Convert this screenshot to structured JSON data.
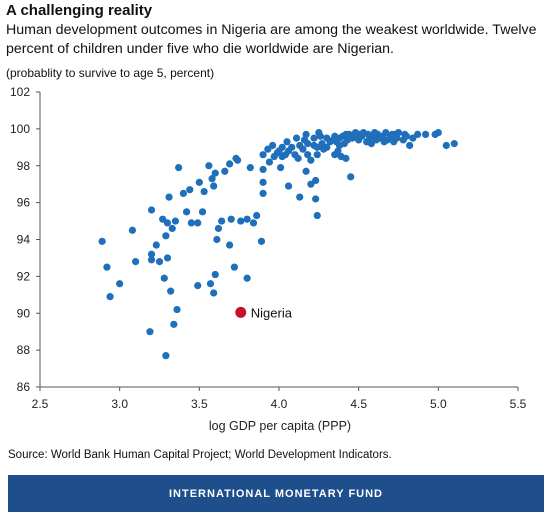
{
  "chart_data": {
    "type": "scatter",
    "title": "A challenging reality",
    "subtitle": "Human development outcomes in Nigeria are among the weakest worldwide. Twelve percent of children under five who die worldwide are Nigerian.",
    "units_note": "(probablity to survive to age 5, percent)",
    "xlabel": "log GDP per capita (PPP)",
    "ylabel": "",
    "xlim": [
      2.5,
      5.5
    ],
    "ylim": [
      86,
      102
    ],
    "xticks": [
      "2.5",
      "3.0",
      "3.5",
      "4.0",
      "4.5",
      "5.0",
      "5.5"
    ],
    "yticks": [
      "86",
      "88",
      "90",
      "92",
      "94",
      "96",
      "98",
      "100",
      "102"
    ],
    "grid": false,
    "colors": {
      "countries": "#1f6fba",
      "nigeria": "#c8102e"
    },
    "highlight": {
      "label": "Nigeria",
      "x": 3.76,
      "y": 90.05
    },
    "points": [
      [
        2.89,
        93.9
      ],
      [
        2.92,
        92.5
      ],
      [
        2.94,
        90.9
      ],
      [
        3.0,
        91.6
      ],
      [
        3.08,
        94.5
      ],
      [
        3.1,
        92.8
      ],
      [
        3.19,
        89.0
      ],
      [
        3.2,
        92.9
      ],
      [
        3.2,
        93.2
      ],
      [
        3.2,
        95.6
      ],
      [
        3.23,
        93.7
      ],
      [
        3.25,
        92.8
      ],
      [
        3.27,
        95.1
      ],
      [
        3.28,
        91.9
      ],
      [
        3.29,
        87.7
      ],
      [
        3.29,
        94.2
      ],
      [
        3.3,
        93.0
      ],
      [
        3.3,
        94.9
      ],
      [
        3.31,
        96.3
      ],
      [
        3.32,
        91.2
      ],
      [
        3.33,
        94.6
      ],
      [
        3.34,
        89.4
      ],
      [
        3.35,
        95.0
      ],
      [
        3.36,
        90.2
      ],
      [
        3.37,
        97.9
      ],
      [
        3.4,
        96.5
      ],
      [
        3.42,
        95.5
      ],
      [
        3.44,
        96.7
      ],
      [
        3.45,
        94.9
      ],
      [
        3.49,
        94.9
      ],
      [
        3.49,
        91.5
      ],
      [
        3.5,
        97.1
      ],
      [
        3.52,
        95.5
      ],
      [
        3.53,
        96.6
      ],
      [
        3.56,
        98.0
      ],
      [
        3.57,
        91.6
      ],
      [
        3.58,
        97.3
      ],
      [
        3.59,
        91.1
      ],
      [
        3.59,
        96.9
      ],
      [
        3.6,
        92.1
      ],
      [
        3.6,
        97.6
      ],
      [
        3.61,
        94.0
      ],
      [
        3.62,
        94.6
      ],
      [
        3.64,
        95.0
      ],
      [
        3.66,
        97.7
      ],
      [
        3.69,
        93.7
      ],
      [
        3.69,
        98.1
      ],
      [
        3.7,
        95.1
      ],
      [
        3.72,
        92.5
      ],
      [
        3.73,
        98.4
      ],
      [
        3.74,
        98.3
      ],
      [
        3.76,
        95.0
      ],
      [
        3.8,
        91.9
      ],
      [
        3.8,
        95.1
      ],
      [
        3.82,
        97.9
      ],
      [
        3.84,
        94.9
      ],
      [
        3.86,
        95.3
      ],
      [
        3.89,
        93.9
      ],
      [
        3.9,
        97.8
      ],
      [
        3.9,
        98.6
      ],
      [
        3.9,
        97.1
      ],
      [
        3.9,
        96.5
      ],
      [
        3.93,
        98.9
      ],
      [
        3.94,
        98.2
      ],
      [
        3.96,
        99.1
      ],
      [
        3.97,
        98.5
      ],
      [
        3.99,
        98.7
      ],
      [
        4.0,
        98.8
      ],
      [
        4.01,
        97.9
      ],
      [
        4.02,
        99.0
      ],
      [
        4.02,
        98.5
      ],
      [
        4.04,
        98.6
      ],
      [
        4.05,
        99.3
      ],
      [
        4.06,
        96.9
      ],
      [
        4.06,
        98.8
      ],
      [
        4.08,
        99.0
      ],
      [
        4.1,
        98.6
      ],
      [
        4.11,
        99.5
      ],
      [
        4.12,
        98.4
      ],
      [
        4.13,
        99.1
      ],
      [
        4.13,
        96.3
      ],
      [
        4.15,
        98.9
      ],
      [
        4.16,
        99.4
      ],
      [
        4.17,
        99.7
      ],
      [
        4.17,
        97.7
      ],
      [
        4.18,
        98.6
      ],
      [
        4.18,
        99.2
      ],
      [
        4.2,
        97.0
      ],
      [
        4.2,
        98.3
      ],
      [
        4.22,
        99.1
      ],
      [
        4.22,
        99.5
      ],
      [
        4.23,
        96.2
      ],
      [
        4.23,
        97.2
      ],
      [
        4.24,
        99.0
      ],
      [
        4.24,
        95.3
      ],
      [
        4.24,
        98.6
      ],
      [
        4.25,
        99.8
      ],
      [
        4.26,
        99.6
      ],
      [
        4.27,
        99.2
      ],
      [
        4.28,
        98.9
      ],
      [
        4.3,
        99.5
      ],
      [
        4.3,
        99.0
      ],
      [
        4.32,
        99.3
      ],
      [
        4.34,
        99.4
      ],
      [
        4.35,
        98.6
      ],
      [
        4.35,
        99.6
      ],
      [
        4.36,
        99.3
      ],
      [
        4.37,
        98.8
      ],
      [
        4.38,
        99.1
      ],
      [
        4.38,
        99.5
      ],
      [
        4.39,
        98.5
      ],
      [
        4.4,
        99.6
      ],
      [
        4.41,
        99.2
      ],
      [
        4.42,
        98.4
      ],
      [
        4.42,
        99.7
      ],
      [
        4.43,
        99.4
      ],
      [
        4.44,
        99.7
      ],
      [
        4.45,
        97.4
      ],
      [
        4.46,
        99.5
      ],
      [
        4.47,
        99.6
      ],
      [
        4.48,
        99.8
      ],
      [
        4.5,
        99.4
      ],
      [
        4.5,
        99.7
      ],
      [
        4.52,
        99.6
      ],
      [
        4.53,
        99.8
      ],
      [
        4.55,
        99.3
      ],
      [
        4.56,
        99.7
      ],
      [
        4.57,
        99.5
      ],
      [
        4.58,
        99.2
      ],
      [
        4.6,
        99.6
      ],
      [
        4.6,
        99.8
      ],
      [
        4.61,
        99.4
      ],
      [
        4.62,
        99.7
      ],
      [
        4.63,
        99.5
      ],
      [
        4.65,
        99.6
      ],
      [
        4.66,
        99.3
      ],
      [
        4.67,
        99.8
      ],
      [
        4.68,
        99.4
      ],
      [
        4.7,
        99.6
      ],
      [
        4.71,
        99.7
      ],
      [
        4.72,
        99.3
      ],
      [
        4.73,
        99.7
      ],
      [
        4.74,
        99.5
      ],
      [
        4.75,
        99.8
      ],
      [
        4.78,
        99.4
      ],
      [
        4.79,
        99.7
      ],
      [
        4.8,
        99.6
      ],
      [
        4.82,
        99.1
      ],
      [
        4.84,
        99.5
      ],
      [
        4.87,
        99.7
      ],
      [
        4.92,
        99.7
      ],
      [
        4.98,
        99.7
      ],
      [
        5.0,
        99.8
      ],
      [
        5.05,
        99.1
      ],
      [
        5.1,
        99.2
      ]
    ],
    "source": "Source: World Bank Human Capital Project; World Development Indicators."
  },
  "footer": {
    "text": "INTERNATIONAL MONETARY FUND"
  }
}
